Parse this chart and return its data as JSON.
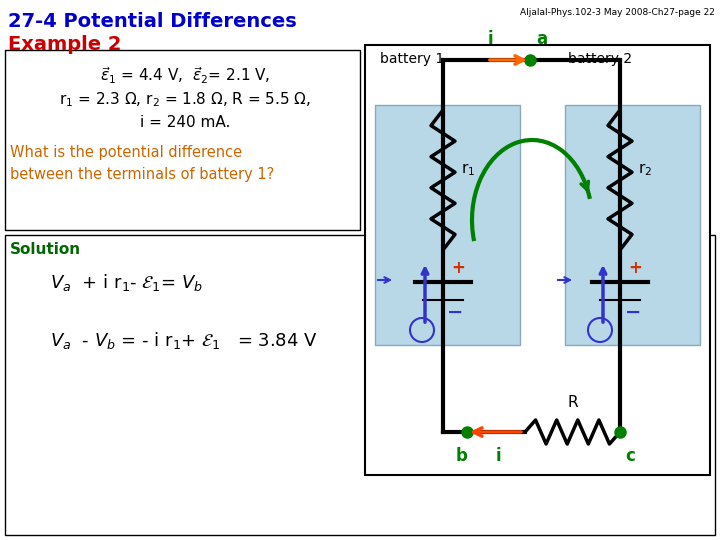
{
  "title_line1": "27-4 Potential Differences",
  "title_line2": "Example 2",
  "header_text": "Aljalal-Phys.102-3 May 2008-Ch27-page 22",
  "title_color": "#0000CC",
  "example_color": "#CC0000",
  "question_color": "#CC6600",
  "solution_color": "#006600",
  "bg_color": "#FFFFFF",
  "bat_fill": "#B8D8E8",
  "bat_edge": "#88AABB"
}
